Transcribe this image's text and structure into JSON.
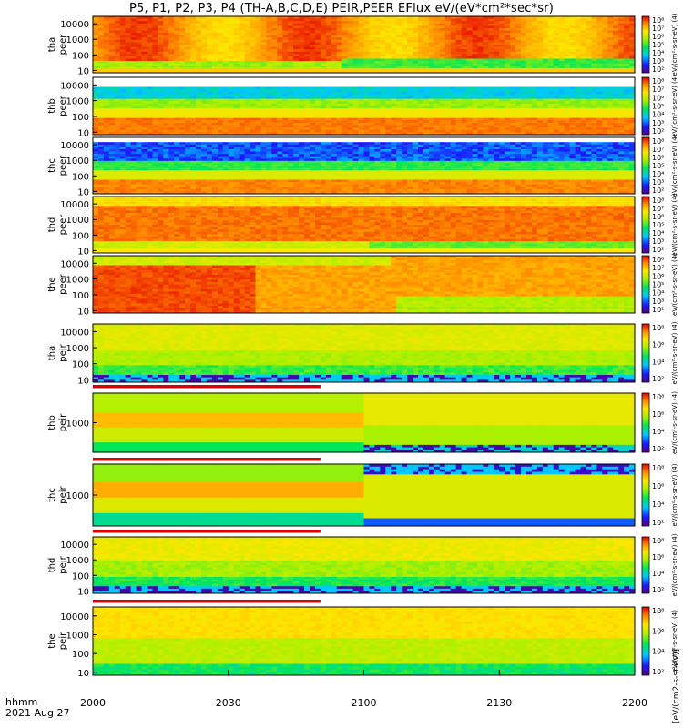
{
  "chart_data": {
    "type": "heatmap",
    "title": "P5, P1, P2, P3, P4 (TH-A,B,C,D,E) PEIR,PEER EFlux eV/(eV*cm²*sec*sr)",
    "x_axis": {
      "label_line1": "hhmm",
      "label_line2": "2021 Aug 27",
      "ticks": [
        "2000",
        "2030",
        "2100",
        "2130",
        "2200"
      ],
      "tick_values_min_after_2000": [
        0,
        30,
        60,
        90,
        120
      ],
      "range_min_after_2000": [
        0,
        120
      ]
    },
    "colorbar": {
      "scale": "log",
      "peer_ticks": [
        "10²",
        "10³",
        "10⁴",
        "10⁵",
        "10⁶",
        "10⁷",
        "10⁸"
      ],
      "peir_ticks": [
        "10²",
        "10⁴",
        "10⁶",
        "10⁸"
      ],
      "peer_side_label": "eV/(cm²-s-sr-eV) (4)",
      "peir_side_label": "eV/(cm²-s-sr-eV) (4)",
      "bottom_label": "[eV/(cm2-s-sr-eV)]"
    },
    "panels": [
      {
        "probe": "tha",
        "product": "peer",
        "ylabel_top": "tha",
        "ylabel_bottom": "peer",
        "yscale": "log",
        "ylim": [
          7,
          30000
        ],
        "yticks": [
          "10",
          "100",
          "1000",
          "10000"
        ],
        "pattern": "tha_peer"
      },
      {
        "probe": "thb",
        "product": "peer",
        "ylabel_top": "thb",
        "ylabel_bottom": "peer",
        "yscale": "log",
        "ylim": [
          7,
          30000
        ],
        "yticks": [
          "10",
          "100",
          "1000",
          "10000"
        ],
        "pattern": "thb_peer"
      },
      {
        "probe": "thc",
        "product": "peer",
        "ylabel_top": "thc",
        "ylabel_bottom": "peer",
        "yscale": "log",
        "ylim": [
          7,
          30000
        ],
        "yticks": [
          "10",
          "100",
          "1000",
          "10000"
        ],
        "pattern": "thc_peer"
      },
      {
        "probe": "thd",
        "product": "peer",
        "ylabel_top": "thd",
        "ylabel_bottom": "peer",
        "yscale": "log",
        "ylim": [
          7,
          30000
        ],
        "yticks": [
          "10",
          "100",
          "1000",
          "10000"
        ],
        "pattern": "thd_peer"
      },
      {
        "probe": "the",
        "product": "peer",
        "ylabel_top": "the",
        "ylabel_bottom": "peer",
        "yscale": "log",
        "ylim": [
          7,
          30000
        ],
        "yticks": [
          "10",
          "100",
          "1000",
          "10000"
        ],
        "pattern": "the_peer"
      },
      {
        "probe": "tha",
        "product": "peir",
        "ylabel_top": "tha",
        "ylabel_bottom": "peir",
        "yscale": "log",
        "ylim": [
          7,
          30000
        ],
        "yticks": [
          "10",
          "100",
          "1000",
          "10000"
        ],
        "pattern": "tha_peir"
      },
      {
        "probe": "thb",
        "product": "peir",
        "ylabel_top": "thb",
        "ylabel_bottom": "peir",
        "yscale": "log",
        "ylim": [
          200,
          5000
        ],
        "yticks": [
          "1000"
        ],
        "pattern": "thb_peir"
      },
      {
        "probe": "thc",
        "product": "peir",
        "ylabel_top": "thc",
        "ylabel_bottom": "peir",
        "yscale": "log",
        "ylim": [
          200,
          5000
        ],
        "yticks": [
          "1000"
        ],
        "pattern": "thc_peir"
      },
      {
        "probe": "thd",
        "product": "peir",
        "ylabel_top": "thd",
        "ylabel_bottom": "peir",
        "yscale": "log",
        "ylim": [
          7,
          30000
        ],
        "yticks": [
          "10",
          "100",
          "1000",
          "10000"
        ],
        "pattern": "thd_peir"
      },
      {
        "probe": "the",
        "product": "peir",
        "ylabel_top": "the",
        "ylabel_bottom": "peir",
        "yscale": "log",
        "ylim": [
          7,
          30000
        ],
        "yticks": [
          "10",
          "100",
          "1000",
          "10000"
        ],
        "pattern": "the_peir"
      }
    ]
  }
}
